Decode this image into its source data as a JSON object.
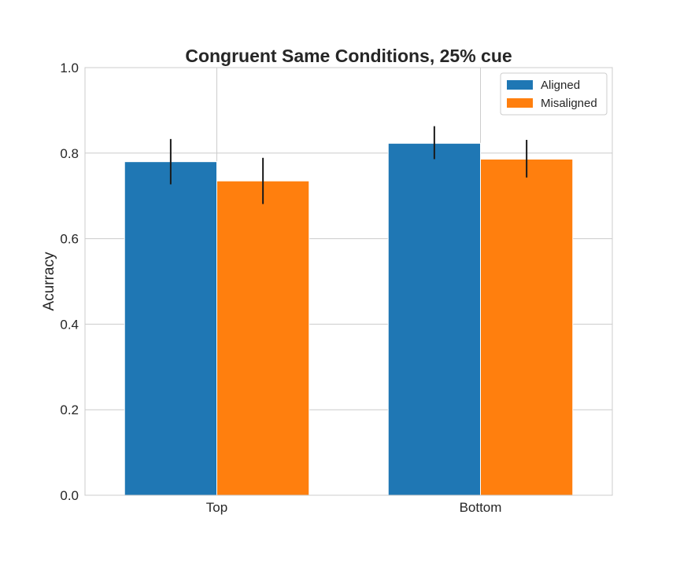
{
  "chart_data": {
    "type": "bar",
    "title": "Congruent Same Conditions, 25% cue",
    "xlabel": "",
    "ylabel": "Acurracy",
    "categories": [
      "Top",
      "Bottom"
    ],
    "series": [
      {
        "name": "Aligned",
        "color": "#1f77b4",
        "values": [
          0.78,
          0.823
        ],
        "err_low": [
          0.727,
          0.786
        ],
        "err_high": [
          0.833,
          0.863
        ]
      },
      {
        "name": "Misaligned",
        "color": "#ff7f0e",
        "values": [
          0.735,
          0.786
        ],
        "err_low": [
          0.681,
          0.743
        ],
        "err_high": [
          0.789,
          0.831
        ]
      }
    ],
    "ylim": [
      0,
      1.0
    ],
    "yticks": [
      "0.0",
      "0.2",
      "0.4",
      "0.6",
      "0.8",
      "1.0"
    ],
    "grid": true,
    "legend_position": "top-right"
  }
}
